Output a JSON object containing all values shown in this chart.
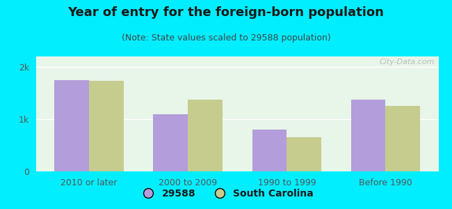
{
  "title": "Year of entry for the foreign-born population",
  "subtitle": "(Note: State values scaled to 29588 population)",
  "categories": [
    "2010 or later",
    "2000 to 2009",
    "1990 to 1999",
    "Before 1990"
  ],
  "series_29588": [
    1750,
    1100,
    800,
    1380
  ],
  "series_sc": [
    1730,
    1370,
    660,
    1250
  ],
  "bar_color_29588": "#b39ddb",
  "bar_color_sc": "#c5cc8e",
  "background_outer": "#00eeff",
  "background_inner": "#e8f5e9",
  "legend_label_29588": "29588",
  "legend_label_sc": "South Carolina",
  "ylim": [
    0,
    2200
  ],
  "yticks": [
    0,
    1000,
    2000
  ],
  "ytick_labels": [
    "0",
    "1k",
    "2k"
  ],
  "bar_width": 0.35,
  "title_fontsize": 13,
  "subtitle_fontsize": 9,
  "tick_fontsize": 9,
  "legend_fontsize": 10
}
